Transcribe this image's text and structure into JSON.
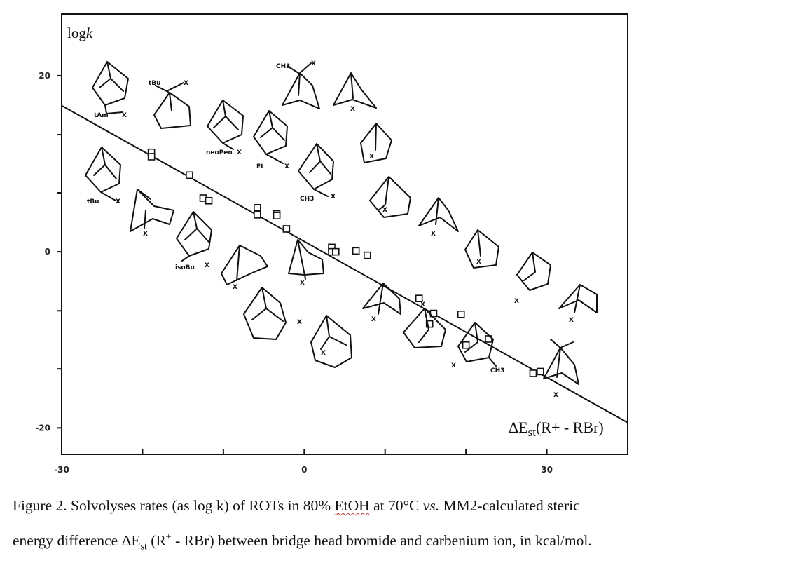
{
  "chart_data": {
    "type": "scatter",
    "xlabel": "ΔE",
    "xlabel_sub": "st",
    "xlabel_tail": "(R+ - RBr)",
    "ylabel": "log",
    "ylabel_italic": "k",
    "xlim": [
      -30,
      40
    ],
    "ylim": [
      -23,
      27
    ],
    "x_ticks": [
      -30,
      -20,
      -10,
      0,
      10,
      20,
      30,
      40
    ],
    "x_tick_labels": [
      "-30",
      "",
      "",
      "0",
      "",
      "",
      "30",
      ""
    ],
    "y_ticks": [
      -20,
      -13.3,
      -6.7,
      0,
      6.7,
      13.3,
      20
    ],
    "y_tick_labels": [
      "-20",
      "",
      "",
      "0",
      "",
      "",
      "20"
    ],
    "grid": false,
    "points": [
      {
        "x": -18.9,
        "y": 11.3
      },
      {
        "x": -18.9,
        "y": 10.8
      },
      {
        "x": -14.2,
        "y": 8.7
      },
      {
        "x": -12.5,
        "y": 6.1
      },
      {
        "x": -11.8,
        "y": 5.8
      },
      {
        "x": -5.8,
        "y": 5.0
      },
      {
        "x": -5.8,
        "y": 4.2
      },
      {
        "x": -3.4,
        "y": 4.3
      },
      {
        "x": -3.4,
        "y": 4.1
      },
      {
        "x": -2.2,
        "y": 2.6
      },
      {
        "x": 3.4,
        "y": 0.5
      },
      {
        "x": 3.4,
        "y": 0.0
      },
      {
        "x": 3.9,
        "y": 0.0
      },
      {
        "x": 6.4,
        "y": 0.1
      },
      {
        "x": 7.8,
        "y": -0.4
      },
      {
        "x": 14.2,
        "y": -5.3
      },
      {
        "x": 15.5,
        "y": -8.2
      },
      {
        "x": 16.0,
        "y": -7.0
      },
      {
        "x": 19.4,
        "y": -7.1
      },
      {
        "x": 20.0,
        "y": -10.6
      },
      {
        "x": 22.8,
        "y": -9.9
      },
      {
        "x": 28.3,
        "y": -13.8
      },
      {
        "x": 29.2,
        "y": -13.6
      }
    ],
    "fit_line": {
      "x": [
        -30,
        40
      ],
      "y": [
        16.6,
        -19.4
      ]
    },
    "structures": [
      {
        "name": "1-adamantyl, tAm",
        "label": "tAm"
      },
      {
        "name": "tBu adamantane",
        "label": "tBu"
      },
      {
        "name": "2-methyl bicyclooctane",
        "label": "CH3"
      },
      {
        "name": "norbornane 1",
        "label": ""
      },
      {
        "name": "neoPen adamantane",
        "label": "neoPen"
      },
      {
        "name": "Et adamantane",
        "label": "Et"
      },
      {
        "name": "2-adamantyl",
        "label": "CH3"
      },
      {
        "name": "bicyclooctane A",
        "label": ""
      },
      {
        "name": "homoadamantane",
        "label": ""
      },
      {
        "name": "adamantane",
        "label": "tBu"
      },
      {
        "name": "bicyclononane",
        "label": ""
      },
      {
        "name": "isoBu adamantane",
        "label": "isoBu"
      },
      {
        "name": "bicyclo cycloheptane",
        "label": ""
      },
      {
        "name": "bicyclo cyclooctane",
        "label": ""
      },
      {
        "name": "noradamantane",
        "label": ""
      },
      {
        "name": "norbornane 2",
        "label": ""
      },
      {
        "name": "bicyclo[3.3.2]",
        "label": ""
      },
      {
        "name": "bicyclo[2.2.2] B",
        "label": ""
      },
      {
        "name": "bicyclo cycloheptane 2",
        "label": ""
      },
      {
        "name": "homoadamantane 2",
        "label": ""
      },
      {
        "name": "twistane",
        "label": ""
      },
      {
        "name": "methyl adamantane",
        "label": "CH3"
      },
      {
        "name": "bicyclo[2.2.1] C",
        "label": ""
      },
      {
        "name": "norbornyl",
        "label": ""
      },
      {
        "name": "camphane",
        "label": ""
      }
    ]
  },
  "caption": {
    "line1_a": "Figure 2. Solvolyses rates (as log k) of ROTs  in 80% ",
    "line1_b": "EtOH",
    "line1_c": " at 70°C  ",
    "line1_d": "vs.",
    "line1_e": " MM2-calculated  steric",
    "line2_a": "energy difference ΔE",
    "line2_b": "st",
    "line2_c": " (R",
    "line2_d": "+",
    "line2_e": " - RBr) between bridge head bromide and carbenium ion, in kcal/mol."
  }
}
